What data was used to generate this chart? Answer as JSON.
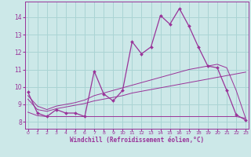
{
  "xlabel": "Windchill (Refroidissement éolien,°C)",
  "background_color": "#cce8e8",
  "grid_color": "#aad4d4",
  "line_color": "#993399",
  "x": [
    0,
    1,
    2,
    3,
    4,
    5,
    6,
    7,
    8,
    9,
    10,
    11,
    12,
    13,
    14,
    15,
    16,
    17,
    18,
    19,
    20,
    21,
    22,
    23
  ],
  "y_main": [
    9.7,
    8.5,
    8.3,
    8.7,
    8.5,
    8.5,
    8.3,
    10.9,
    9.6,
    9.2,
    9.8,
    12.6,
    11.9,
    12.3,
    14.1,
    13.6,
    14.5,
    13.5,
    12.3,
    11.2,
    11.1,
    9.8,
    8.4,
    8.1
  ],
  "y_flat": [
    8.55,
    8.35,
    8.3,
    8.3,
    8.3,
    8.3,
    8.3,
    8.3,
    8.3,
    8.3,
    8.3,
    8.3,
    8.3,
    8.3,
    8.3,
    8.3,
    8.3,
    8.3,
    8.3,
    8.3,
    8.3,
    8.3,
    8.3,
    8.2
  ],
  "y_grad1": [
    9.3,
    8.7,
    8.6,
    8.75,
    8.85,
    8.95,
    9.05,
    9.2,
    9.3,
    9.4,
    9.5,
    9.65,
    9.75,
    9.85,
    9.95,
    10.05,
    10.15,
    10.25,
    10.35,
    10.45,
    10.55,
    10.65,
    10.75,
    10.85
  ],
  "y_grad2": [
    9.5,
    8.9,
    8.7,
    8.9,
    9.0,
    9.1,
    9.25,
    9.5,
    9.65,
    9.8,
    9.95,
    10.1,
    10.25,
    10.4,
    10.55,
    10.7,
    10.85,
    11.0,
    11.1,
    11.2,
    11.3,
    11.1,
    9.8,
    8.2
  ],
  "ylim": [
    7.6,
    14.9
  ],
  "yticks": [
    8,
    9,
    10,
    11,
    12,
    13,
    14
  ],
  "xticks": [
    0,
    1,
    2,
    3,
    4,
    5,
    6,
    7,
    8,
    9,
    10,
    11,
    12,
    13,
    14,
    15,
    16,
    17,
    18,
    19,
    20,
    21,
    22,
    23
  ]
}
